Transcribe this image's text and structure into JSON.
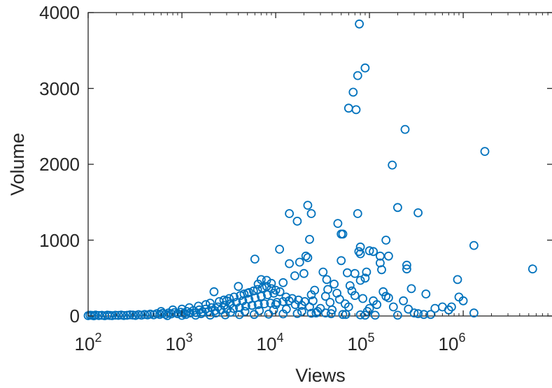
{
  "chart_data": {
    "type": "scatter",
    "title": "",
    "xlabel": "Views",
    "ylabel": "Volume",
    "xscale": "log",
    "xlim": [
      100,
      9000000
    ],
    "ylim": [
      0,
      4000
    ],
    "grid": false,
    "legend": "none",
    "marker": "circle-open",
    "color": "#0072BD",
    "x_ticks": [
      {
        "base": "10",
        "exp": "2"
      },
      {
        "base": "10",
        "exp": "3"
      },
      {
        "base": "10",
        "exp": "4"
      },
      {
        "base": "10",
        "exp": "5"
      },
      {
        "base": "10",
        "exp": "6"
      }
    ],
    "x_tick_values": [
      100,
      1000,
      10000,
      100000,
      1000000
    ],
    "y_ticks": [
      "0",
      "1000",
      "2000",
      "3000",
      "4000"
    ],
    "y_tick_values": [
      0,
      1000,
      2000,
      3000,
      4000
    ],
    "points": [
      [
        78000,
        3850
      ],
      [
        90000,
        3270
      ],
      [
        75000,
        3170
      ],
      [
        67000,
        2950
      ],
      [
        60000,
        2740
      ],
      [
        72000,
        2720
      ],
      [
        240000,
        2460
      ],
      [
        1700000,
        2170
      ],
      [
        175000,
        1990
      ],
      [
        22000,
        1460
      ],
      [
        200000,
        1430
      ],
      [
        14000,
        1350
      ],
      [
        24000,
        1350
      ],
      [
        75000,
        1350
      ],
      [
        330000,
        1360
      ],
      [
        17000,
        1250
      ],
      [
        46000,
        1220
      ],
      [
        50000,
        1080
      ],
      [
        52000,
        1080
      ],
      [
        23000,
        1010
      ],
      [
        150000,
        1000
      ],
      [
        1300000,
        930
      ],
      [
        80000,
        910
      ],
      [
        100000,
        860
      ],
      [
        110000,
        850
      ],
      [
        11000,
        880
      ],
      [
        21000,
        790
      ],
      [
        77000,
        850
      ],
      [
        80000,
        820
      ],
      [
        130000,
        790
      ],
      [
        160000,
        790
      ],
      [
        5500000,
        620
      ],
      [
        6000,
        750
      ],
      [
        18000,
        710
      ],
      [
        22000,
        770
      ],
      [
        50000,
        730
      ],
      [
        130000,
        700
      ],
      [
        250000,
        670
      ],
      [
        135000,
        610
      ],
      [
        250000,
        620
      ],
      [
        32000,
        580
      ],
      [
        58000,
        570
      ],
      [
        93000,
        580
      ],
      [
        70000,
        560
      ],
      [
        20000,
        560
      ],
      [
        16000,
        530
      ],
      [
        14000,
        690
      ],
      [
        35000,
        480
      ],
      [
        80000,
        470
      ],
      [
        90000,
        500
      ],
      [
        7000,
        480
      ],
      [
        8000,
        470
      ],
      [
        9000,
        430
      ],
      [
        12000,
        440
      ],
      [
        6500,
        420
      ],
      [
        870000,
        480
      ],
      [
        280000,
        360
      ],
      [
        400000,
        290
      ],
      [
        1000000,
        200
      ],
      [
        900000,
        250
      ],
      [
        1300000,
        40
      ],
      [
        500000,
        100
      ],
      [
        600000,
        120
      ],
      [
        700000,
        80
      ],
      [
        750000,
        120
      ],
      [
        450000,
        20
      ],
      [
        380000,
        20
      ],
      [
        330000,
        30
      ],
      [
        300000,
        40
      ],
      [
        260000,
        90
      ],
      [
        230000,
        200
      ],
      [
        200000,
        10
      ],
      [
        180000,
        120
      ],
      [
        160000,
        240
      ],
      [
        150000,
        260
      ],
      [
        140000,
        320
      ],
      [
        120000,
        150
      ],
      [
        110000,
        200
      ],
      [
        100000,
        100
      ],
      [
        95000,
        60
      ],
      [
        90000,
        10
      ],
      [
        85000,
        230
      ],
      [
        70000,
        270
      ],
      [
        65000,
        330
      ],
      [
        62000,
        400
      ],
      [
        60000,
        120
      ],
      [
        55000,
        160
      ],
      [
        52000,
        20
      ],
      [
        48000,
        220
      ],
      [
        45000,
        300
      ],
      [
        42000,
        420
      ],
      [
        40000,
        80
      ],
      [
        38000,
        180
      ],
      [
        36000,
        350
      ],
      [
        34000,
        260
      ],
      [
        30000,
        100
      ],
      [
        28000,
        60
      ],
      [
        26000,
        340
      ],
      [
        25000,
        200
      ],
      [
        24000,
        280
      ],
      [
        23000,
        120
      ],
      [
        2200,
        320
      ],
      [
        4000,
        390
      ],
      [
        5000,
        300
      ],
      [
        10000,
        150
      ],
      [
        3000,
        200
      ],
      [
        100,
        5
      ],
      [
        105,
        10
      ],
      [
        110,
        8
      ],
      [
        115,
        3
      ],
      [
        120,
        12
      ],
      [
        130,
        6
      ],
      [
        140,
        9
      ],
      [
        150,
        4
      ],
      [
        160,
        11
      ],
      [
        170,
        7
      ],
      [
        180,
        5
      ],
      [
        195,
        10
      ],
      [
        210,
        8
      ],
      [
        225,
        13
      ],
      [
        240,
        6
      ],
      [
        260,
        9
      ],
      [
        280,
        15
      ],
      [
        300,
        12
      ],
      [
        320,
        7
      ],
      [
        345,
        18
      ],
      [
        370,
        10
      ],
      [
        400,
        20
      ],
      [
        430,
        14
      ],
      [
        460,
        25
      ],
      [
        500,
        16
      ],
      [
        540,
        30
      ],
      [
        580,
        20
      ],
      [
        620,
        35
      ],
      [
        670,
        22
      ],
      [
        720,
        40
      ],
      [
        770,
        28
      ],
      [
        830,
        45
      ],
      [
        900,
        30
      ],
      [
        970,
        50
      ],
      [
        1050,
        35
      ],
      [
        1130,
        60
      ],
      [
        1220,
        40
      ],
      [
        1320,
        70
      ],
      [
        1420,
        45
      ],
      [
        1530,
        80
      ],
      [
        1650,
        55
      ],
      [
        1780,
        90
      ],
      [
        1920,
        60
      ],
      [
        2070,
        110
      ],
      [
        2240,
        70
      ],
      [
        2420,
        120
      ],
      [
        2610,
        80
      ],
      [
        2820,
        140
      ],
      [
        3040,
        90
      ],
      [
        3280,
        160
      ],
      [
        3540,
        100
      ],
      [
        3820,
        180
      ],
      [
        4120,
        110
      ],
      [
        4450,
        200
      ],
      [
        4800,
        130
      ],
      [
        5180,
        220
      ],
      [
        5590,
        140
      ],
      [
        6030,
        240
      ],
      [
        6510,
        150
      ],
      [
        7030,
        260
      ],
      [
        7580,
        160
      ],
      [
        8180,
        280
      ],
      [
        8830,
        170
      ],
      [
        9530,
        300
      ],
      [
        10300,
        180
      ],
      [
        11100,
        320
      ],
      [
        12000,
        190
      ],
      [
        12900,
        250
      ],
      [
        13900,
        200
      ],
      [
        15000,
        230
      ],
      [
        16200,
        150
      ],
      [
        17500,
        210
      ],
      [
        18900,
        140
      ],
      [
        20400,
        190
      ],
      [
        600,
        60
      ],
      [
        800,
        80
      ],
      [
        1000,
        90
      ],
      [
        1200,
        110
      ],
      [
        1500,
        130
      ],
      [
        1800,
        150
      ],
      [
        2000,
        170
      ],
      [
        2500,
        190
      ],
      [
        2800,
        210
      ],
      [
        3200,
        230
      ],
      [
        3600,
        250
      ],
      [
        4200,
        270
      ],
      [
        4600,
        290
      ],
      [
        5200,
        310
      ],
      [
        5800,
        330
      ],
      [
        6400,
        350
      ],
      [
        7200,
        370
      ],
      [
        8000,
        390
      ],
      [
        9000,
        360
      ],
      [
        10000,
        340
      ],
      [
        1100,
        20
      ],
      [
        1600,
        30
      ],
      [
        2300,
        40
      ],
      [
        3300,
        50
      ],
      [
        4700,
        60
      ],
      [
        6700,
        70
      ],
      [
        9500,
        80
      ],
      [
        13000,
        90
      ],
      [
        19000,
        60
      ],
      [
        27000,
        40
      ],
      [
        39000,
        30
      ],
      [
        56000,
        20
      ],
      [
        80000,
        15
      ],
      [
        115000,
        10
      ],
      [
        700,
        5
      ],
      [
        1000,
        8
      ],
      [
        1400,
        10
      ],
      [
        2000,
        12
      ],
      [
        2900,
        15
      ],
      [
        4100,
        18
      ],
      [
        5900,
        20
      ],
      [
        8400,
        25
      ],
      [
        12000,
        28
      ],
      [
        17000,
        32
      ],
      [
        24000,
        36
      ],
      [
        34000,
        40
      ]
    ]
  }
}
